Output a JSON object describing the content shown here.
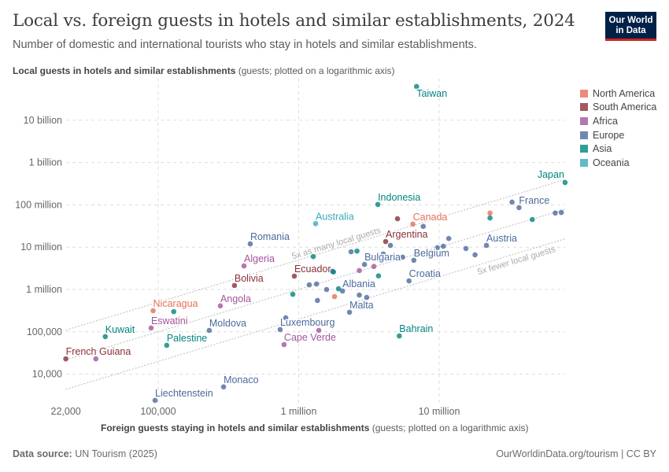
{
  "header": {
    "title": "Local vs. foreign guests in hotels and similar establishments, 2024",
    "subtitle": "Number of domestic and international tourists who stay in hotels and similar establishments.",
    "logo": "Our World in Data"
  },
  "footer": {
    "source_label": "Data source:",
    "source": "UN Tourism (2025)",
    "url": "OurWorldinData.org/tourism | CC BY"
  },
  "chart_data": {
    "type": "scatter",
    "ylabel_bold": "Local guests in hotels and similar establishments",
    "ylabel_note": "(guests; plotted on a logarithmic axis)",
    "xlabel_bold": "Foreign guests staying in hotels and similar establishments",
    "xlabel_note": "(guests; plotted on a logarithmic axis)",
    "x_scale": "log",
    "y_scale": "log",
    "grid": true,
    "legend_position": "right",
    "xlim": [
      22000,
      80000000
    ],
    "x_ticks": [
      {
        "v": 22000,
        "label": "22,000"
      },
      {
        "v": 100000,
        "label": "100,000"
      },
      {
        "v": 1000000,
        "label": "1 million"
      },
      {
        "v": 10000000,
        "label": "10 million"
      }
    ],
    "y_ticks": [
      {
        "v": 10000000000,
        "label": "10 billion"
      },
      {
        "v": 1000000000,
        "label": "1 billion"
      },
      {
        "v": 100000000,
        "label": "100 million"
      },
      {
        "v": 10000000,
        "label": "10 million"
      },
      {
        "v": 1000000,
        "label": "1 million"
      },
      {
        "v": 100000,
        "label": "100,000"
      },
      {
        "v": 10000,
        "label": "10,000"
      }
    ],
    "reference_lines": [
      {
        "ratio": 5,
        "label": "5x as many local guests"
      },
      {
        "ratio": 1,
        "label": ""
      },
      {
        "ratio": 0.2,
        "label": "5x fewer local guests"
      }
    ],
    "regions": [
      {
        "name": "North America",
        "color": "#E56E5A"
      },
      {
        "name": "South America",
        "color": "#883039"
      },
      {
        "name": "Africa",
        "color": "#A2559C"
      },
      {
        "name": "Europe",
        "color": "#4C6A9C"
      },
      {
        "name": "Asia",
        "color": "#00847E"
      },
      {
        "name": "Oceania",
        "color": "#38AABA"
      }
    ],
    "points": [
      {
        "label": "Taiwan",
        "region": "Asia",
        "x": 6900000,
        "y": 62500000000
      },
      {
        "label": "Japan",
        "region": "Asia",
        "x": 78700000,
        "y": 337000000
      },
      {
        "label": "Indonesia",
        "region": "Asia",
        "x": 3660000,
        "y": 102000000
      },
      {
        "label": "Australia",
        "region": "Oceania",
        "x": 1320000,
        "y": 36000000
      },
      {
        "label": "Canada",
        "region": "North America",
        "x": 6500000,
        "y": 35000000
      },
      {
        "label": "",
        "region": "South America",
        "x": 5050000,
        "y": 47000000
      },
      {
        "label": "",
        "region": "Europe",
        "x": 7700000,
        "y": 31000000
      },
      {
        "label": "France",
        "region": "Europe",
        "x": 37000000,
        "y": 86000000
      },
      {
        "label": "",
        "region": "Europe",
        "x": 33000000,
        "y": 116000000
      },
      {
        "label": "",
        "region": "North America",
        "x": 23000000,
        "y": 64000000
      },
      {
        "label": "",
        "region": "Asia",
        "x": 23000000,
        "y": 49000000
      },
      {
        "label": "",
        "region": "Asia",
        "x": 46000000,
        "y": 45000000
      },
      {
        "label": "",
        "region": "Europe",
        "x": 67000000,
        "y": 64000000
      },
      {
        "label": "",
        "region": "Europe",
        "x": 74000000,
        "y": 66000000
      },
      {
        "label": "Argentina",
        "region": "South America",
        "x": 4160000,
        "y": 13600000
      },
      {
        "label": "",
        "region": "Europe",
        "x": 4500000,
        "y": 11000000
      },
      {
        "label": "",
        "region": "Europe",
        "x": 11700000,
        "y": 16000000
      },
      {
        "label": "",
        "region": "Europe",
        "x": 10700000,
        "y": 10500000
      },
      {
        "label": "",
        "region": "Europe",
        "x": 9700000,
        "y": 9700000
      },
      {
        "label": "Austria",
        "region": "Europe",
        "x": 21700000,
        "y": 11000000
      },
      {
        "label": "",
        "region": "Europe",
        "x": 15500000,
        "y": 9300000
      },
      {
        "label": "",
        "region": "Europe",
        "x": 18000000,
        "y": 6600000
      },
      {
        "label": "Belgium",
        "region": "Europe",
        "x": 6600000,
        "y": 4900000
      },
      {
        "label": "",
        "region": "Europe",
        "x": 2360000,
        "y": 7800000
      },
      {
        "label": "",
        "region": "Asia",
        "x": 2600000,
        "y": 8100000
      },
      {
        "label": "",
        "region": "Asia",
        "x": 1270000,
        "y": 6000000
      },
      {
        "label": "",
        "region": "Europe",
        "x": 4000000,
        "y": 6900000
      },
      {
        "label": "",
        "region": "Europe",
        "x": 5500000,
        "y": 5800000
      },
      {
        "label": "Bulgaria",
        "region": "Europe",
        "x": 2940000,
        "y": 3900000
      },
      {
        "label": "",
        "region": "Africa",
        "x": 3430000,
        "y": 3500000
      },
      {
        "label": "",
        "region": "Africa",
        "x": 2700000,
        "y": 2800000
      },
      {
        "label": "",
        "region": "Asia",
        "x": 3700000,
        "y": 2100000
      },
      {
        "label": "Ecuador",
        "region": "South America",
        "x": 931000,
        "y": 2070000
      },
      {
        "label": "",
        "region": "Europe",
        "x": 1740000,
        "y": 2700000
      },
      {
        "label": "",
        "region": "Asia",
        "x": 1770000,
        "y": 2600000
      },
      {
        "label": "Croatia",
        "region": "Europe",
        "x": 6100000,
        "y": 1600000
      },
      {
        "label": "",
        "region": "Europe",
        "x": 1190000,
        "y": 1290000
      },
      {
        "label": "",
        "region": "Europe",
        "x": 1340000,
        "y": 1350000
      },
      {
        "label": "",
        "region": "Europe",
        "x": 1580000,
        "y": 1000000
      },
      {
        "label": "",
        "region": "Asia",
        "x": 1920000,
        "y": 1040000
      },
      {
        "label": "Albania",
        "region": "Europe",
        "x": 2050000,
        "y": 920000
      },
      {
        "label": "",
        "region": "Europe",
        "x": 2700000,
        "y": 740000
      },
      {
        "label": "",
        "region": "Europe",
        "x": 3050000,
        "y": 650000
      },
      {
        "label": "",
        "region": "North America",
        "x": 1800000,
        "y": 680000
      },
      {
        "label": "",
        "region": "Europe",
        "x": 1360000,
        "y": 550000
      },
      {
        "label": "",
        "region": "Asia",
        "x": 908000,
        "y": 770000
      },
      {
        "label": "Malta",
        "region": "Europe",
        "x": 2300000,
        "y": 290000
      },
      {
        "label": "",
        "region": "Europe",
        "x": 809000,
        "y": 214000
      },
      {
        "label": "Luxembourg",
        "region": "Europe",
        "x": 738000,
        "y": 113000
      },
      {
        "label": "",
        "region": "Africa",
        "x": 1390000,
        "y": 108000
      },
      {
        "label": "Cape Verde",
        "region": "Africa",
        "x": 787000,
        "y": 50000
      },
      {
        "label": "Bahrain",
        "region": "Asia",
        "x": 5200000,
        "y": 80000
      },
      {
        "label": "Romania",
        "region": "Europe",
        "x": 452000,
        "y": 12000000
      },
      {
        "label": "Algeria",
        "region": "Africa",
        "x": 408000,
        "y": 3600000
      },
      {
        "label": "Bolivia",
        "region": "South America",
        "x": 349000,
        "y": 1240000
      },
      {
        "label": "Angola",
        "region": "Africa",
        "x": 277000,
        "y": 410000
      },
      {
        "label": "Nicaragua",
        "region": "North America",
        "x": 92000,
        "y": 315000
      },
      {
        "label": "",
        "region": "Asia",
        "x": 129000,
        "y": 300000
      },
      {
        "label": "Eswatini",
        "region": "Africa",
        "x": 89000,
        "y": 123000
      },
      {
        "label": "Moldova",
        "region": "Europe",
        "x": 231000,
        "y": 108000
      },
      {
        "label": "Kuwait",
        "region": "Asia",
        "x": 42000,
        "y": 77000
      },
      {
        "label": "Palestine",
        "region": "Asia",
        "x": 115000,
        "y": 48000
      },
      {
        "label": "French Guiana",
        "region": "South America",
        "x": 22000,
        "y": 23000
      },
      {
        "label": "",
        "region": "Africa",
        "x": 36000,
        "y": 23000
      },
      {
        "label": "Monaco",
        "region": "Europe",
        "x": 292000,
        "y": 5000
      },
      {
        "label": "Liechtenstein",
        "region": "Europe",
        "x": 95000,
        "y": 2400
      }
    ]
  }
}
